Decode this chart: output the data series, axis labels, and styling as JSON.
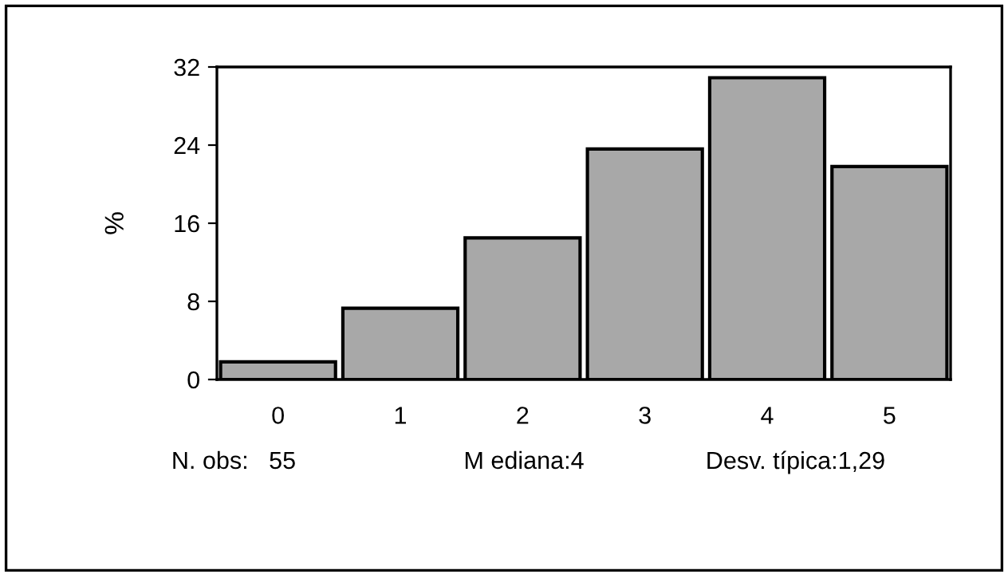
{
  "chart_data": {
    "type": "bar",
    "ylabel": "%",
    "categories": [
      "0",
      "1",
      "2",
      "3",
      "4",
      "5"
    ],
    "values": [
      1.8,
      7.3,
      14.5,
      23.6,
      30.9,
      21.8
    ],
    "color": "#a8a8a8",
    "ylim": [
      0,
      32
    ],
    "yticks": [
      0,
      8,
      16,
      24,
      32
    ],
    "grid": false,
    "legend": false,
    "annotations": [
      "N. obs:   55",
      "M ediana:4",
      "Desv. típica:1,29"
    ]
  }
}
